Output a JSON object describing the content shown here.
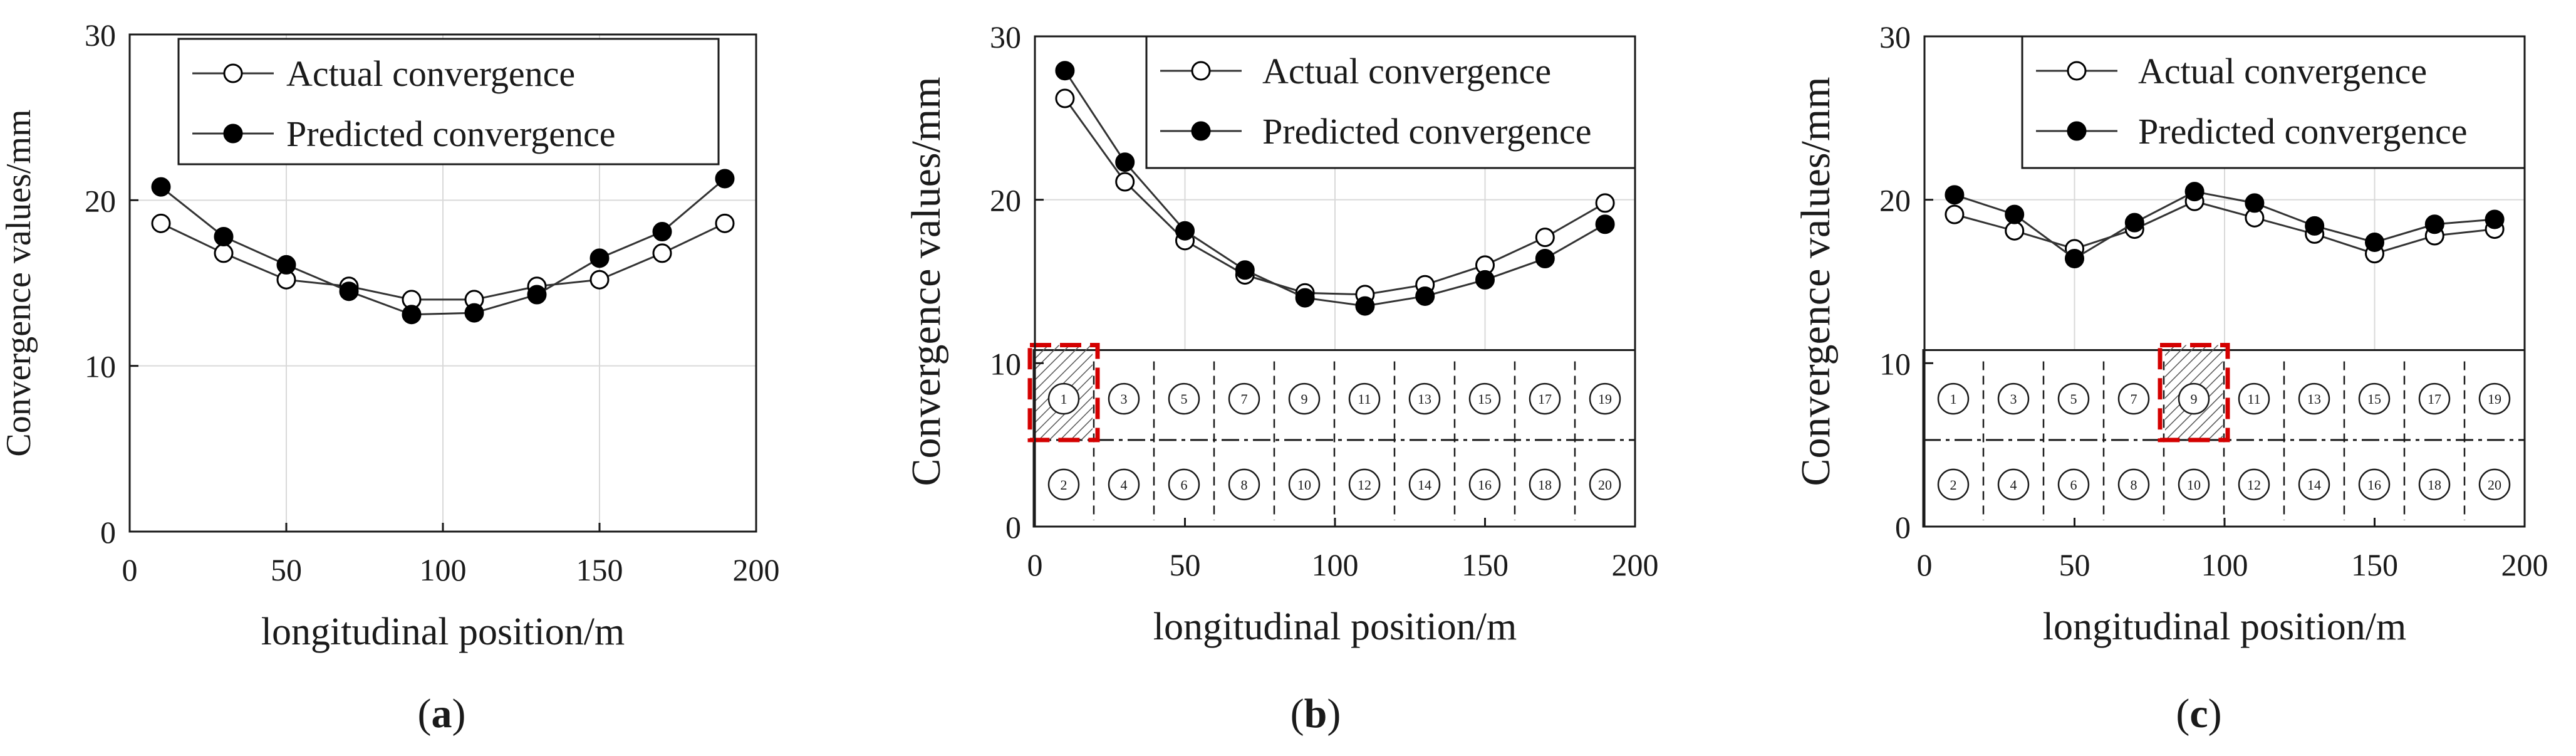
{
  "chart_data": [
    {
      "type": "line",
      "panel": "(a)",
      "caption_letter": "a",
      "xlabel": "longitudinal position/m",
      "ylabel": "Convergence values/mm",
      "xlim": [
        0,
        200
      ],
      "ylim": [
        0,
        30
      ],
      "xticks": [
        "0",
        "50",
        "100",
        "150",
        "200"
      ],
      "yticks": [
        "0",
        "10",
        "20",
        "30"
      ],
      "grid": true,
      "legend_position": "top-center",
      "x": [
        10,
        30,
        50,
        70,
        90,
        110,
        130,
        150,
        170,
        190
      ],
      "series": [
        {
          "name": "Actual convergence",
          "marker": "open-circle",
          "values": [
            18.6,
            16.8,
            15.2,
            14.8,
            14.0,
            14.0,
            14.8,
            15.2,
            16.8,
            18.6
          ]
        },
        {
          "name": "Predicted convergence",
          "marker": "filled-circle",
          "values": [
            20.8,
            17.8,
            16.1,
            14.5,
            13.1,
            13.2,
            14.3,
            16.5,
            18.1,
            21.3
          ]
        }
      ]
    },
    {
      "type": "line",
      "panel": "(b)",
      "caption_letter": "b",
      "xlabel": "longitudinal position/m",
      "ylabel": "Convergence values/mm",
      "xlim": [
        0,
        200
      ],
      "ylim": [
        0,
        30
      ],
      "xticks": [
        "0",
        "50",
        "100",
        "150",
        "200"
      ],
      "yticks": [
        "0",
        "10",
        "20",
        "30"
      ],
      "grid": true,
      "legend_position": "top-right",
      "x": [
        10,
        30,
        50,
        70,
        90,
        110,
        130,
        150,
        170,
        190
      ],
      "series": [
        {
          "name": "Actual convergence",
          "marker": "open-circle",
          "values": [
            26.2,
            21.1,
            17.5,
            15.4,
            14.3,
            14.2,
            14.8,
            16.0,
            17.7,
            19.8
          ]
        },
        {
          "name": "Predicted convergence",
          "marker": "filled-circle",
          "values": [
            27.9,
            22.3,
            18.1,
            15.7,
            14.0,
            13.5,
            14.1,
            15.1,
            16.4,
            18.5
          ]
        }
      ],
      "inset": {
        "top_row": [
          "1",
          "3",
          "5",
          "7",
          "9",
          "11",
          "13",
          "15",
          "17",
          "19"
        ],
        "bottom_row": [
          "2",
          "4",
          "6",
          "8",
          "10",
          "12",
          "14",
          "16",
          "18",
          "20"
        ],
        "highlighted_cell": "1"
      }
    },
    {
      "type": "line",
      "panel": "(c)",
      "caption_letter": "c",
      "xlabel": "longitudinal position/m",
      "ylabel": "Convergence values/mm",
      "xlim": [
        0,
        200
      ],
      "ylim": [
        0,
        30
      ],
      "xticks": [
        "0",
        "50",
        "100",
        "150",
        "200"
      ],
      "yticks": [
        "0",
        "10",
        "20",
        "30"
      ],
      "grid": true,
      "legend_position": "top-right",
      "x": [
        10,
        30,
        50,
        70,
        90,
        110,
        130,
        150,
        170,
        190
      ],
      "series": [
        {
          "name": "Actual convergence",
          "marker": "open-circle",
          "values": [
            19.1,
            18.1,
            17.0,
            18.2,
            19.9,
            18.9,
            17.9,
            16.7,
            17.8,
            18.2
          ]
        },
        {
          "name": "Predicted convergence",
          "marker": "filled-circle",
          "values": [
            20.3,
            19.1,
            16.4,
            18.6,
            20.5,
            19.8,
            18.4,
            17.4,
            18.5,
            18.8
          ]
        }
      ],
      "inset": {
        "top_row": [
          "1",
          "3",
          "5",
          "7",
          "9",
          "11",
          "13",
          "15",
          "17",
          "19"
        ],
        "bottom_row": [
          "2",
          "4",
          "6",
          "8",
          "10",
          "12",
          "14",
          "16",
          "18",
          "20"
        ],
        "highlighted_cell": "9"
      }
    }
  ],
  "colors": {
    "axis": "#1a1a1a",
    "grid": "#d9d9d9",
    "line": "#333333",
    "highlight": "#d40000"
  }
}
